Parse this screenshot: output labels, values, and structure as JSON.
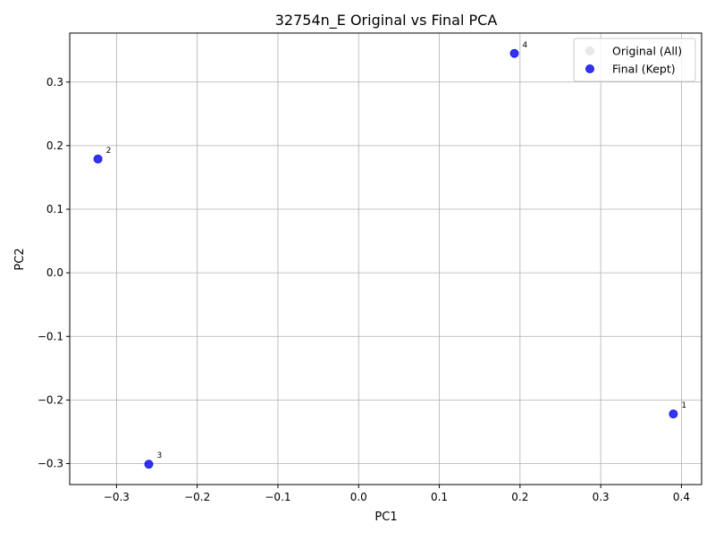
{
  "chart_data": {
    "type": "scatter",
    "title": "32754n_E Original vs Final PCA",
    "xlabel": "PC1",
    "ylabel": "PC2",
    "xlim": [
      -0.358,
      0.425
    ],
    "ylim": [
      -0.333,
      0.377
    ],
    "xticks": [
      -0.3,
      -0.2,
      -0.1,
      0.0,
      0.1,
      0.2,
      0.3,
      0.4
    ],
    "xtick_labels": [
      "−0.3",
      "−0.2",
      "−0.1",
      "0.0",
      "0.1",
      "0.2",
      "0.3",
      "0.4"
    ],
    "yticks": [
      -0.3,
      -0.2,
      -0.1,
      0.0,
      0.1,
      0.2,
      0.3
    ],
    "ytick_labels": [
      "−0.3",
      "−0.2",
      "−0.1",
      "0.0",
      "0.1",
      "0.2",
      "0.3"
    ],
    "grid": true,
    "legend_position": "top-right",
    "series": [
      {
        "name": "Original (All)",
        "color": "#d9d9d9",
        "opacity": 0.6,
        "points": []
      },
      {
        "name": "Final (Kept)",
        "color": "#0000ee",
        "opacity": 0.8,
        "points": [
          {
            "x": 0.39,
            "y": -0.222,
            "label": "1"
          },
          {
            "x": -0.323,
            "y": 0.179,
            "label": "2"
          },
          {
            "x": -0.26,
            "y": -0.301,
            "label": "3"
          },
          {
            "x": 0.193,
            "y": 0.345,
            "label": "4"
          }
        ]
      }
    ]
  }
}
